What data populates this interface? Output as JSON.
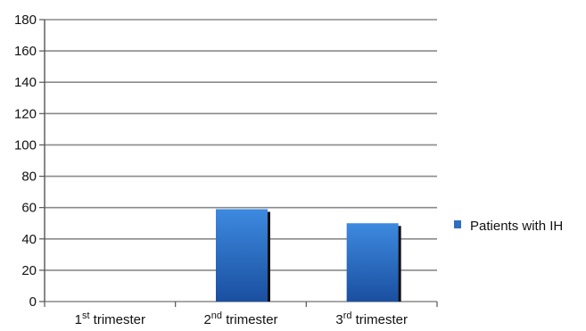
{
  "chart_data": {
    "type": "bar",
    "categories": [
      {
        "num": "1",
        "sup": "st",
        "rest": " trimester"
      },
      {
        "num": "2",
        "sup": "nd",
        "rest": " trimester"
      },
      {
        "num": "3",
        "sup": "rd",
        "rest": " trimester"
      }
    ],
    "series": [
      {
        "name": "Patients with IH",
        "values": [
          0,
          59,
          50
        ],
        "color": "#2f6fc0"
      }
    ],
    "ylim": [
      0,
      180
    ],
    "yticks": [
      0,
      20,
      40,
      60,
      80,
      100,
      120,
      140,
      160,
      180
    ],
    "grid": true,
    "legend": "right",
    "title": "",
    "xlabel": "",
    "ylabel": ""
  }
}
